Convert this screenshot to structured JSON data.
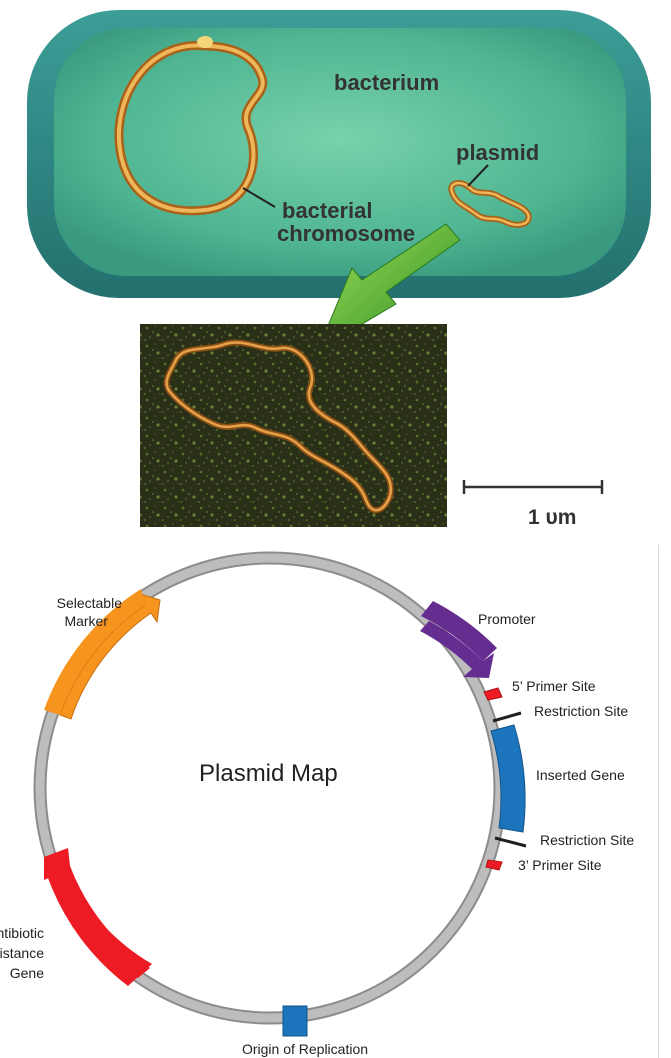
{
  "bacterium_figure": {
    "labels": {
      "bacterium": "bacterium",
      "plasmid": "plasmid",
      "chromosome_line1": "bacterial",
      "chromosome_line2": "chromosome"
    },
    "scale_bar": "1 υm",
    "colors": {
      "cell_wall": "#2f8a86",
      "cytoplasm": "#5ec19c",
      "dna": "#d68a2a",
      "arrow": "#5cb531"
    }
  },
  "plasmid_map": {
    "title": "Plasmid Map",
    "labels": {
      "selectable_marker_line1": "Selectable",
      "selectable_marker_line2": "Marker",
      "promoter": "Promoter",
      "primer_5": "5’ Primer Site",
      "restriction_site_1": "Restriction Site",
      "inserted_gene": "Inserted Gene",
      "restriction_site_2": "Restriction Site",
      "primer_3": "3’ Primer Site",
      "antibiotic_line1": "Antibiotic",
      "antibiotic_line2": "Resistance",
      "antibiotic_line3": "Gene",
      "origin": "Origin of Replication"
    },
    "colors": {
      "backbone": "#b3b3b3",
      "selectable_marker": "#f7941d",
      "promoter": "#662d91",
      "inserted_gene": "#1c75bc",
      "antibiotic_resistance": "#ed1c24",
      "origin": "#1c75bc",
      "primer": "#ed1c24",
      "restriction": "#231f20"
    }
  }
}
